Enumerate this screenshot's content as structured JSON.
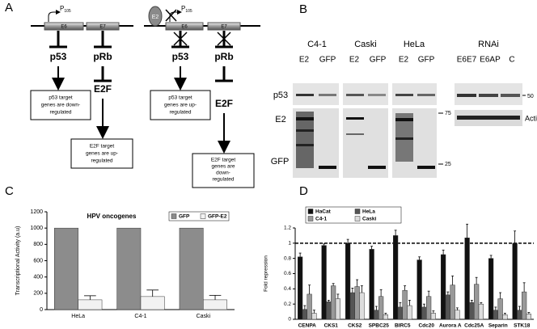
{
  "panel_labels": [
    "A",
    "B",
    "C",
    "D"
  ],
  "panel_a": {
    "left": {
      "promoter": "P",
      "promoter_sub": "105",
      "genes": [
        "E6",
        "E7"
      ],
      "proteins": [
        "p53",
        "pRb"
      ],
      "factor": "E2F",
      "outcomes": [
        [
          "p53 target",
          "genes are down-",
          "regulated"
        ],
        [
          "E2F target",
          "genes are up-",
          "regulated"
        ]
      ]
    },
    "right": {
      "repressor": "E2",
      "promoter": "P",
      "promoter_sub": "105",
      "genes": [
        "E6",
        "E7"
      ],
      "proteins": [
        "p53",
        "pRb"
      ],
      "factor": "E2F",
      "outcomes": [
        [
          "p53 target",
          "genes are up-",
          "regulated"
        ],
        [
          "E2F target",
          "genes are",
          "down-",
          "regulated"
        ]
      ]
    }
  },
  "panel_b": {
    "groups": [
      "C4-1",
      "Caski",
      "HeLa",
      "RNAi"
    ],
    "lanes": [
      "E2",
      "GFP",
      "E2",
      "GFP",
      "E2",
      "GFP",
      "E6E7",
      "E6AP",
      "C"
    ],
    "rows": [
      "p53",
      "E2",
      "GFP"
    ],
    "loading_control": "Actin",
    "markers": [
      50,
      75,
      25
    ]
  },
  "chart_data": [
    {
      "type": "bar",
      "title": "HPV oncogenes",
      "y_label": "Transcriptional Activity (a.u)",
      "categories": [
        "HeLa",
        "C4-1",
        "Caski"
      ],
      "series": [
        {
          "name": "GFP",
          "color": "#8c8c8c",
          "values": [
            1000,
            1000,
            1000
          ]
        },
        {
          "name": "GFP-E2",
          "color": "#f2f2f2",
          "values": [
            120,
            160,
            120
          ],
          "errors": [
            50,
            80,
            55
          ]
        }
      ],
      "ylim": [
        0,
        1200
      ],
      "yticks": [
        0,
        200,
        400,
        600,
        800,
        1000,
        1200
      ],
      "legend": "top right"
    },
    {
      "type": "bar",
      "y_label": "Fold repression",
      "categories": [
        "CENPA",
        "CKS1",
        "CKS2",
        "SPBC25",
        "BIRC5",
        "Cdc20",
        "Aurora A",
        "Cdc25A",
        "Separin",
        "STK18"
      ],
      "series": [
        {
          "name": "HaCat",
          "color": "#111111",
          "values": [
            0.82,
            0.97,
            1.0,
            0.92,
            1.1,
            0.78,
            0.85,
            1.07,
            0.8,
            1.0
          ],
          "errors": [
            0.05,
            0.02,
            0.05,
            0.04,
            0.07,
            0.04,
            0.06,
            0.18,
            0.04,
            0.16
          ]
        },
        {
          "name": "HeLa",
          "color": "#555555",
          "values": [
            0.13,
            0.23,
            0.35,
            0.12,
            0.16,
            0.16,
            0.32,
            0.22,
            0.12,
            0.12
          ],
          "errors": [
            0.05,
            0.02,
            0.06,
            0.05,
            0.06,
            0.04,
            0.04,
            0.03,
            0.04,
            0.05
          ]
        },
        {
          "name": "C4-1",
          "color": "#999999",
          "values": [
            0.33,
            0.44,
            0.43,
            0.3,
            0.38,
            0.3,
            0.45,
            0.46,
            0.27,
            0.36
          ],
          "errors": [
            0.12,
            0.03,
            0.09,
            0.09,
            0.06,
            0.07,
            0.12,
            0.09,
            0.08,
            0.12
          ]
        },
        {
          "name": "Caski",
          "color": "#dddddd",
          "values": [
            0.08,
            0.27,
            0.35,
            0.06,
            0.18,
            0.08,
            0.12,
            0.2,
            0.06,
            0.07
          ],
          "errors": [
            0.04,
            0.06,
            0.09,
            0.02,
            0.07,
            0.03,
            0.03,
            0.02,
            0.02,
            0.02
          ]
        }
      ],
      "ylim": [
        0,
        1.2
      ],
      "yticks": [
        0,
        0.2,
        0.4,
        0.6,
        0.8,
        1,
        1.2
      ],
      "reference_line": 1,
      "legend": "top left"
    }
  ]
}
